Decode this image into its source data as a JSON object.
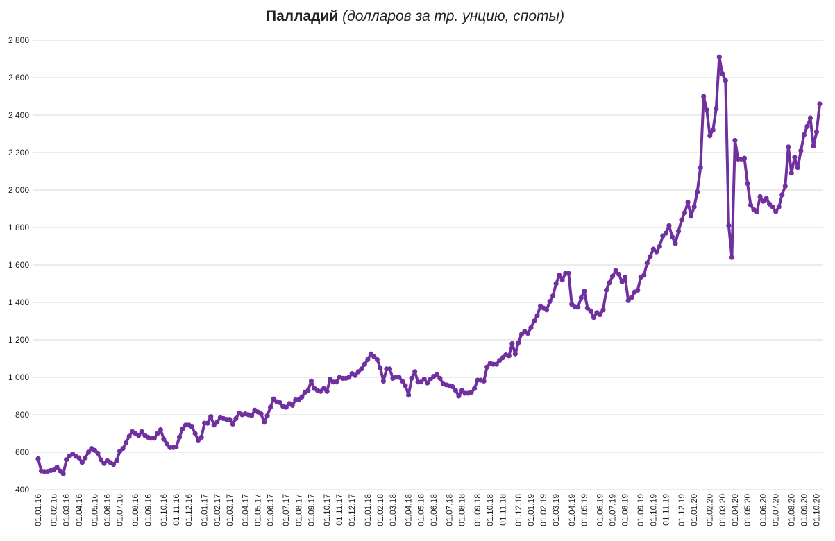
{
  "chart_data": {
    "type": "line",
    "title": "Палладий",
    "subtitle": "(долларов за тр. унцию, споты)",
    "color": "#7030a0",
    "grid": true,
    "ylim": [
      400,
      2800
    ],
    "yticks": [
      400,
      600,
      800,
      {
        "value": 1000,
        "label": "1 000"
      },
      {
        "value": 1200,
        "label": "1 200"
      },
      {
        "value": 1400,
        "label": "1 400"
      },
      {
        "value": 1600,
        "label": "1 600"
      },
      {
        "value": 1800,
        "label": "1 800"
      },
      {
        "value": 2000,
        "label": "2 000"
      },
      {
        "value": 2200,
        "label": "2 200"
      },
      {
        "value": 2400,
        "label": "2 400"
      },
      {
        "value": 2600,
        "label": "2 600"
      },
      {
        "value": 2800,
        "label": "2 800"
      }
    ],
    "categories": [
      "01.01.16",
      null,
      null,
      null,
      null,
      "01.02.16",
      null,
      null,
      null,
      "01.03.16",
      null,
      null,
      null,
      "01.04.16",
      null,
      null,
      null,
      null,
      "01.05.16",
      null,
      null,
      null,
      "01.06.16",
      null,
      null,
      null,
      "01.07.16",
      null,
      null,
      null,
      null,
      "01.08.16",
      null,
      null,
      null,
      "01.09.16",
      null,
      null,
      null,
      null,
      "01.10.16",
      null,
      null,
      null,
      "01.11.16",
      null,
      null,
      null,
      "01.12.16",
      null,
      null,
      null,
      null,
      "01.01.17",
      null,
      null,
      null,
      "01.02.17",
      null,
      null,
      null,
      "01.03.17",
      null,
      null,
      null,
      null,
      "01.04.17",
      null,
      null,
      null,
      "01.05.17",
      null,
      null,
      null,
      "01.06.17",
      null,
      null,
      null,
      null,
      "01.07.17",
      null,
      null,
      null,
      "01.08.17",
      null,
      null,
      null,
      "01.09.17",
      null,
      null,
      null,
      null,
      "01.10.17",
      null,
      null,
      null,
      "01.11.17",
      null,
      null,
      null,
      "01.12.17",
      null,
      null,
      null,
      null,
      "01.01.18",
      null,
      null,
      null,
      "01.02.18",
      null,
      null,
      null,
      "01.03.18",
      null,
      null,
      null,
      null,
      "01.04.18",
      null,
      null,
      null,
      "01.05.18",
      null,
      null,
      null,
      "01.06.18",
      null,
      null,
      null,
      null,
      "01.07.18",
      null,
      null,
      null,
      "01.08.18",
      null,
      null,
      null,
      null,
      "01.09.18",
      null,
      null,
      null,
      "01.10.18",
      null,
      null,
      null,
      "01.11.18",
      null,
      null,
      null,
      null,
      "01.12.18",
      null,
      null,
      null,
      "01.01.19",
      null,
      null,
      null,
      "01.02.19",
      null,
      null,
      null,
      "01.03.19",
      null,
      null,
      null,
      null,
      "01.04.19",
      null,
      null,
      null,
      "01.05.19",
      null,
      null,
      null,
      null,
      "01.06.19",
      null,
      null,
      null,
      "01.07.19",
      null,
      null,
      null,
      "01.08.19",
      null,
      null,
      null,
      null,
      "01.09.19",
      null,
      null,
      null,
      "01.10.19",
      null,
      null,
      null,
      "01.11.19",
      null,
      null,
      null,
      null,
      "01.12.19",
      null,
      null,
      null,
      "01.01.20",
      null,
      null,
      null,
      null,
      "01.02.20",
      null,
      null,
      null,
      "01.03.20",
      null,
      null,
      null,
      "01.04.20",
      null,
      null,
      null,
      "01.05.20",
      null,
      null,
      null,
      null,
      "01.06.20",
      null,
      null,
      null,
      "01.07.20",
      null,
      null,
      null,
      null,
      "01.08.20",
      null,
      null,
      null,
      "01.09.20",
      null,
      null,
      null,
      "01.10.20",
      null
    ],
    "values": [
      565,
      500,
      497,
      498,
      502,
      505,
      520,
      500,
      485,
      560,
      580,
      590,
      578,
      570,
      545,
      570,
      600,
      620,
      610,
      595,
      560,
      540,
      555,
      545,
      535,
      555,
      605,
      620,
      650,
      685,
      710,
      700,
      690,
      710,
      690,
      680,
      675,
      675,
      700,
      720,
      670,
      645,
      625,
      625,
      628,
      680,
      725,
      745,
      745,
      735,
      700,
      665,
      680,
      755,
      755,
      790,
      745,
      760,
      785,
      780,
      775,
      775,
      750,
      780,
      810,
      800,
      805,
      800,
      795,
      825,
      815,
      805,
      760,
      795,
      840,
      885,
      870,
      865,
      845,
      840,
      860,
      850,
      880,
      880,
      895,
      920,
      930,
      980,
      940,
      930,
      925,
      940,
      925,
      990,
      975,
      975,
      1000,
      995,
      995,
      1000,
      1020,
      1010,
      1030,
      1045,
      1070,
      1095,
      1125,
      1110,
      1095,
      1050,
      980,
      1045,
      1045,
      995,
      1000,
      1000,
      980,
      955,
      905,
      995,
      1030,
      975,
      975,
      990,
      970,
      990,
      1005,
      1015,
      995,
      965,
      960,
      955,
      950,
      930,
      900,
      930,
      915,
      915,
      920,
      940,
      985,
      985,
      980,
      1055,
      1075,
      1070,
      1070,
      1090,
      1105,
      1120,
      1115,
      1180,
      1125,
      1185,
      1230,
      1245,
      1235,
      1265,
      1300,
      1330,
      1380,
      1370,
      1360,
      1405,
      1435,
      1500,
      1545,
      1520,
      1555,
      1555,
      1390,
      1375,
      1375,
      1425,
      1460,
      1370,
      1355,
      1320,
      1345,
      1335,
      1360,
      1465,
      1505,
      1540,
      1570,
      1550,
      1510,
      1535,
      1410,
      1425,
      1455,
      1465,
      1535,
      1545,
      1610,
      1645,
      1685,
      1670,
      1700,
      1755,
      1770,
      1810,
      1750,
      1715,
      1780,
      1840,
      1880,
      1935,
      1860,
      1910,
      1990,
      2120,
      2500,
      2430,
      2290,
      2320,
      2435,
      2710,
      2620,
      2585,
      1810,
      1640,
      2265,
      2165,
      2165,
      2170,
      2035,
      1920,
      1895,
      1885,
      1965,
      1940,
      1955,
      1925,
      1910,
      1885,
      1910,
      1975,
      2020,
      2230,
      2090,
      2175,
      2120,
      2210,
      2295,
      2340,
      2385,
      2235,
      2310,
      2460
    ]
  }
}
